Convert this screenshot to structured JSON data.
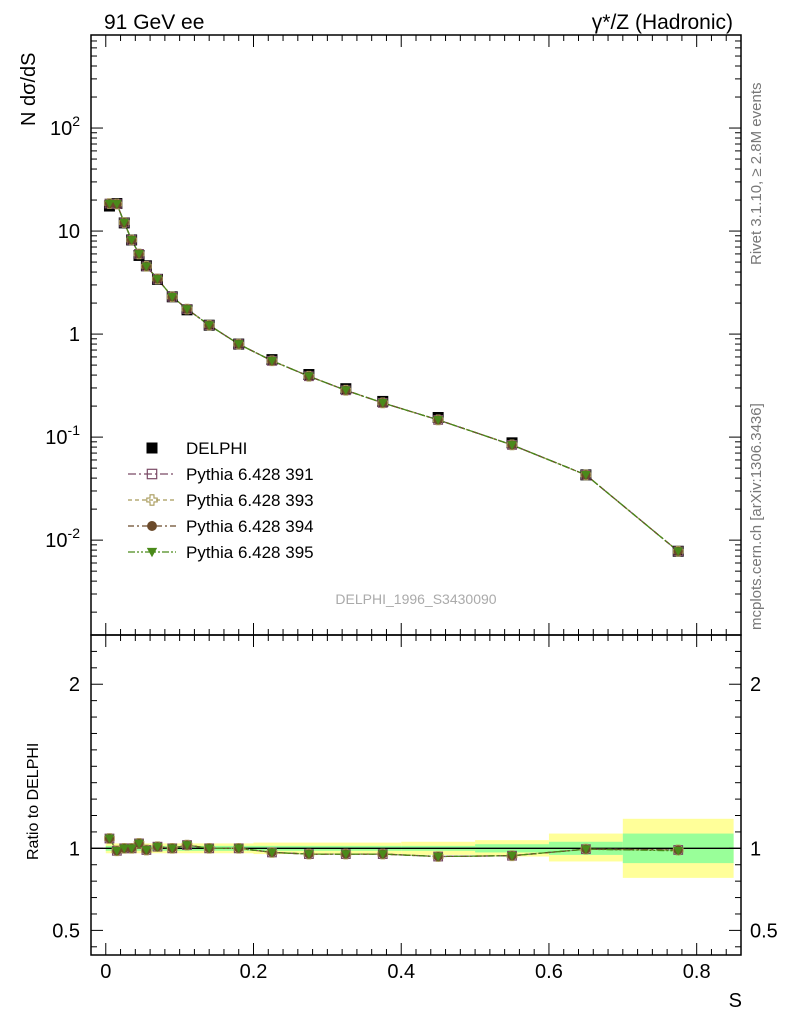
{
  "header": {
    "left_label": "91 GeV ee",
    "right_label": "γ*/Z (Hadronic)"
  },
  "side_labels": {
    "rivet": "Rivet 3.1.10, ≥ 2.8M events",
    "mcplots": "mcplots.cern.ch [arXiv:1306.3436]"
  },
  "watermark": "DELPHI_1996_S3430090",
  "colors": {
    "data": "#000000",
    "p391": "#7a4a66",
    "p393": "#a89a5a",
    "p394": "#6b4a2a",
    "p395": "#4a8a1a",
    "band_inner": "#99ff99",
    "band_outer": "#ffff99"
  },
  "chart_data": [
    {
      "type": "scatter",
      "ylabel": "N dσ/dS",
      "ylog": true,
      "xlim": [
        -0.02,
        0.86
      ],
      "ylim": [
        0.0012,
        800
      ],
      "y_tick_labels": [
        "10^{-2}",
        "10^{-1}",
        "1",
        "10",
        "10^{2}"
      ],
      "x": [
        0.005,
        0.015,
        0.025,
        0.035,
        0.045,
        0.055,
        0.07,
        0.09,
        0.11,
        0.14,
        0.18,
        0.225,
        0.275,
        0.325,
        0.375,
        0.45,
        0.55,
        0.65,
        0.775
      ],
      "series": [
        {
          "name": "DELPHI",
          "marker": "square-filled",
          "values": [
            17.5,
            18.5,
            12.0,
            8.2,
            5.8,
            4.6,
            3.4,
            2.3,
            1.72,
            1.22,
            0.8,
            0.565,
            0.405,
            0.295,
            0.222,
            0.155,
            0.088,
            0.043,
            0.0078
          ]
        },
        {
          "name": "Pythia 6.428 391",
          "marker": "square-open",
          "values": [
            18.5,
            18.3,
            12.1,
            8.2,
            6.0,
            4.55,
            3.43,
            2.3,
            1.75,
            1.22,
            0.8,
            0.55,
            0.39,
            0.285,
            0.215,
            0.147,
            0.084,
            0.043,
            0.0078
          ]
        },
        {
          "name": "Pythia 6.428 393",
          "marker": "cross-open",
          "values": [
            18.5,
            18.3,
            12.1,
            8.2,
            6.0,
            4.55,
            3.43,
            2.3,
            1.75,
            1.22,
            0.8,
            0.55,
            0.39,
            0.285,
            0.215,
            0.147,
            0.084,
            0.043,
            0.0078
          ]
        },
        {
          "name": "Pythia 6.428 394",
          "marker": "circle-filled",
          "values": [
            18.5,
            18.3,
            12.1,
            8.2,
            6.0,
            4.55,
            3.43,
            2.3,
            1.75,
            1.22,
            0.8,
            0.55,
            0.39,
            0.285,
            0.215,
            0.147,
            0.084,
            0.043,
            0.0078
          ]
        },
        {
          "name": "Pythia 6.428 395",
          "marker": "triangle-down-filled",
          "values": [
            18.5,
            18.3,
            12.1,
            8.2,
            6.0,
            4.55,
            3.43,
            2.3,
            1.75,
            1.22,
            0.8,
            0.55,
            0.39,
            0.285,
            0.215,
            0.147,
            0.084,
            0.043,
            0.0078
          ]
        }
      ]
    },
    {
      "type": "scatter",
      "xlabel": "S",
      "ylabel": "Ratio to DELPHI",
      "xlim": [
        -0.02,
        0.86
      ],
      "ylim": [
        0.35,
        2.3
      ],
      "x_ticks": [
        0,
        0.2,
        0.4,
        0.6,
        0.8
      ],
      "x_tick_labels": [
        "0",
        "0.2",
        "0.4",
        "0.6",
        "0.8"
      ],
      "y_ticks": [
        0.5,
        1,
        2
      ],
      "y_tick_labels": [
        "0.5",
        "1",
        "2"
      ],
      "bands": [
        {
          "x0": 0.0,
          "x1": 0.2,
          "inner": [
            0.985,
            1.015
          ],
          "outer": [
            0.97,
            1.03
          ]
        },
        {
          "x0": 0.2,
          "x1": 0.4,
          "inner": [
            0.985,
            1.015
          ],
          "outer": [
            0.965,
            1.035
          ]
        },
        {
          "x0": 0.4,
          "x1": 0.5,
          "inner": [
            0.985,
            1.015
          ],
          "outer": [
            0.96,
            1.04
          ]
        },
        {
          "x0": 0.5,
          "x1": 0.6,
          "inner": [
            0.975,
            1.025
          ],
          "outer": [
            0.95,
            1.05
          ]
        },
        {
          "x0": 0.6,
          "x1": 0.7,
          "inner": [
            0.96,
            1.04
          ],
          "outer": [
            0.92,
            1.09
          ]
        },
        {
          "x0": 0.7,
          "x1": 0.85,
          "inner": [
            0.91,
            1.09
          ],
          "outer": [
            0.82,
            1.18
          ]
        }
      ],
      "x": [
        0.005,
        0.015,
        0.025,
        0.035,
        0.045,
        0.055,
        0.07,
        0.09,
        0.11,
        0.14,
        0.18,
        0.225,
        0.275,
        0.325,
        0.375,
        0.45,
        0.55,
        0.65,
        0.775
      ],
      "series": [
        {
          "name": "Pythia 6.428 391",
          "values": [
            1.06,
            0.985,
            1.0,
            1.0,
            1.03,
            0.99,
            1.01,
            1.0,
            1.02,
            1.0,
            1.0,
            0.975,
            0.965,
            0.965,
            0.965,
            0.95,
            0.955,
            0.995,
            0.99
          ]
        },
        {
          "name": "Pythia 6.428 393",
          "values": [
            1.06,
            0.985,
            1.0,
            1.0,
            1.03,
            0.99,
            1.01,
            1.0,
            1.02,
            1.0,
            1.0,
            0.975,
            0.965,
            0.965,
            0.965,
            0.95,
            0.955,
            0.995,
            0.99
          ]
        },
        {
          "name": "Pythia 6.428 394",
          "values": [
            1.06,
            0.985,
            1.0,
            1.0,
            1.03,
            0.99,
            1.01,
            1.0,
            1.02,
            1.0,
            1.0,
            0.975,
            0.965,
            0.965,
            0.965,
            0.95,
            0.955,
            0.995,
            0.99
          ]
        },
        {
          "name": "Pythia 6.428 395",
          "values": [
            1.06,
            0.985,
            1.0,
            1.0,
            1.03,
            0.99,
            1.01,
            1.0,
            1.02,
            1.0,
            1.0,
            0.975,
            0.965,
            0.965,
            0.965,
            0.95,
            0.955,
            0.995,
            0.985
          ]
        }
      ]
    }
  ]
}
